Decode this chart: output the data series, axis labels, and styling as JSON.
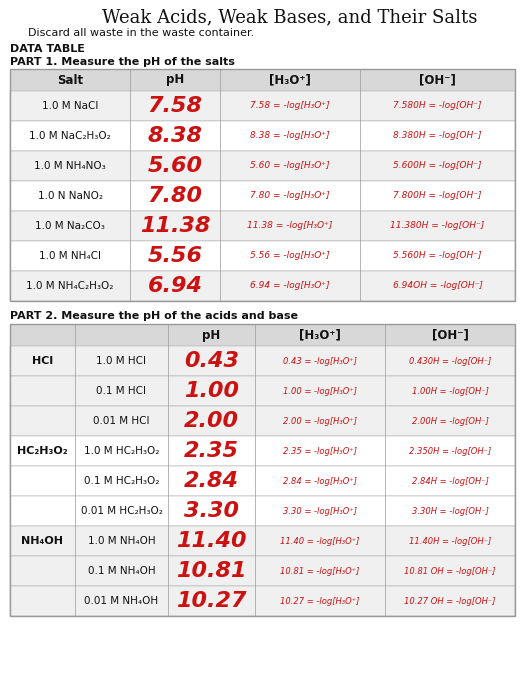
{
  "title": "Weak Acids, Weak Bases, and Their Salts",
  "subtitle": "Discard all waste in the waste container.",
  "data_table_label": "DATA TABLE",
  "part1_label": "PART 1. Measure the pH of the salts",
  "part1_headers": [
    "Salt",
    "pH",
    "[H₃O⁺]",
    "[OH⁻]"
  ],
  "part1_rows": [
    [
      "1.0 M NaCl",
      "7.58",
      "7.58 = -log[H₃O⁺]",
      "7.580H = -log[OH⁻]"
    ],
    [
      "1.0 M NaC₂H₃O₂",
      "8.38",
      "8.38 = -log[H₃O⁺]",
      "8.380H = -log[OH⁻]"
    ],
    [
      "1.0 M NH₄NO₃",
      "5.60",
      "5.60 = -log[H₃O⁺]",
      "5.600H = -log[OH⁻]"
    ],
    [
      "1.0 N NaNO₂",
      "7.80",
      "7.80 = -log[H₃O⁺]",
      "7.800H = -log[OH⁻]"
    ],
    [
      "1.0 M Na₂CO₃",
      "11.38",
      "11.38 = -log[H₃O⁺]",
      "11.380H = -log[OH⁻]"
    ],
    [
      "1.0 M NH₄Cl",
      "5.56",
      "5.56 = -log[H₃O⁺]",
      "5.560H = -log[OH⁻]"
    ],
    [
      "1.0 M NH₄C₂H₃O₂",
      "6.94",
      "6.94 = -log[H₃O⁺]",
      "6.94OH = -log[OH⁻]"
    ]
  ],
  "part2_label": "PART 2. Measure the pH of the acids and base",
  "part2_headers": [
    "",
    "",
    "pH",
    "[H₃O⁺]",
    "[OH⁻]"
  ],
  "part2_rows": [
    [
      "HCl",
      "1.0 M HCl",
      "0.43",
      "0.43 = -log[H₃O⁺]",
      "0.430H = -log[OH⁻]"
    ],
    [
      "",
      "0.1 M HCl",
      "1.00",
      "1.00 = -log[H₃O⁺]",
      "1.00H = -log[OH⁻]"
    ],
    [
      "",
      "0.01 M HCl",
      "2.00",
      "2.00 = -log[H₃O⁺]",
      "2.00H = -log[OH⁻]"
    ],
    [
      "HC₂H₃O₂",
      "1.0 M HC₂H₃O₂",
      "2.35",
      "2.35 = -log[H₃O⁺]",
      "2.350H = -log[OH⁻]"
    ],
    [
      "",
      "0.1 M HC₂H₃O₂",
      "2.84",
      "2.84 = -log[H₃O⁺]",
      "2.84H = -log[OH⁻]"
    ],
    [
      "",
      "0.01 M HC₂H₃O₂",
      "3.30",
      "3.30 = -log[H₃O⁺]",
      "3.30H = -log[OH⁻]"
    ],
    [
      "NH₄OH",
      "1.0 M NH₄OH",
      "11.40",
      "11.40 = -log[H₃O⁺]",
      "11.40H = -log[OH⁻]"
    ],
    [
      "",
      "0.1 M NH₄OH",
      "10.81",
      "10.81 = -log[H₃O⁺]",
      "10.81 OH = -log[OH⁻]"
    ],
    [
      "",
      "0.01 M NH₄OH",
      "10.27",
      "10.27 = -log[H₃O⁺]",
      "10.27 OH = -log[OH⁻]"
    ]
  ],
  "bg_color": "#ffffff",
  "header_bg": "#d8d8d8",
  "row_bg_light": "#f0f0f0",
  "row_bg_white": "#ffffff",
  "handwritten_color": "#cc1111",
  "printed_color": "#111111",
  "border_color": "#999999"
}
